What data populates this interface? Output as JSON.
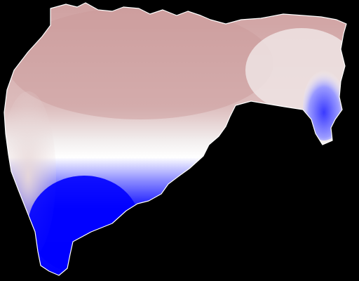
{
  "map": {
    "background_color": "#000000",
    "color_scale": {
      "type": "diverging",
      "low_color": "#0000ff",
      "mid_color": "#ffffff",
      "high_color": "#c58c8c"
    }
  }
}
